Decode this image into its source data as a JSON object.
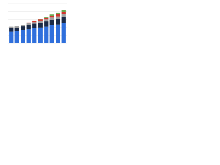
{
  "chart_data": {
    "type": "stacked_bar",
    "categories": [
      null,
      null,
      null,
      null,
      null,
      null,
      null,
      null,
      null,
      null
    ],
    "series": [
      {
        "color": "#2f6fdc",
        "values": [
          30,
          31,
          33,
          36,
          38,
          40,
          42,
          45,
          47,
          50
        ]
      },
      {
        "color": "#1a2a47",
        "values": [
          9,
          9,
          10,
          10,
          11,
          12,
          13,
          14,
          15,
          16
        ]
      },
      {
        "color": "#a0a0a0",
        "values": [
          3,
          3,
          3,
          4,
          4,
          5,
          5,
          6,
          6,
          7
        ]
      },
      {
        "color": "#d0342c",
        "values": [
          0,
          0,
          0,
          2,
          3,
          3,
          4,
          4,
          5,
          5
        ]
      },
      {
        "color": "#6aa84f",
        "values": [
          0,
          0,
          0,
          0,
          1,
          2,
          2,
          3,
          3,
          5
        ]
      }
    ],
    "ylim": [
      0,
      100
    ],
    "yticks": [
      0,
      20,
      40,
      60,
      80,
      100
    ],
    "grid": true
  }
}
